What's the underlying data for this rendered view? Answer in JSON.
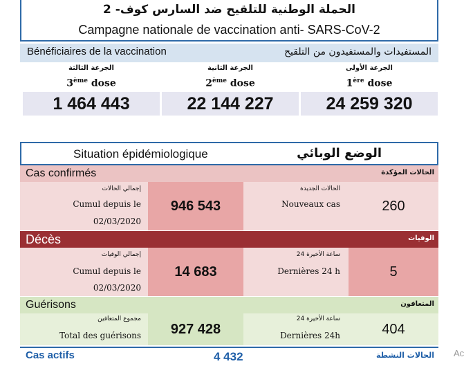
{
  "header": {
    "title_ar": "الحملة الوطنية للتلقيح ضد السارس كوف- 2",
    "title_fr": "Campagne nationale de vaccination anti- SARS-CoV-2"
  },
  "beneficiaries": {
    "label_fr": "Bénéficiaires de la vaccination",
    "label_ar": "المستفيدات والمستفيدون من التلقيح",
    "doses": [
      {
        "label_ar": "الجرعة الثالثة",
        "ordinal": "3",
        "sup": "ème",
        "word": "dose",
        "value": "1 464 443"
      },
      {
        "label_ar": "الجرعة الثانية",
        "ordinal": "2",
        "sup": "ème",
        "word": "dose",
        "value": "22 144 227"
      },
      {
        "label_ar": "الجرعة الأولى",
        "ordinal": "1",
        "sup": "ère",
        "word": "dose",
        "value": "24 259 320"
      }
    ]
  },
  "epi": {
    "title_fr": "Situation épidémiologique",
    "title_ar": "الوضع الوبائي",
    "confirmed": {
      "label_fr": "Cas confirmés",
      "label_ar": "الحالات المؤكدة",
      "cumul_ar": "إجمالي الحالات",
      "cumul_fr_1": "Cumul depuis le",
      "cumul_fr_2": "02/03/2020",
      "cumul_value": "946 543",
      "new_ar": "الحالات الجديدة",
      "new_fr": "Nouveaux cas",
      "new_value": "260"
    },
    "deaths": {
      "label_fr": "Décès",
      "label_ar": "الوفيات",
      "cumul_ar": "إجمالي الوفيات",
      "cumul_fr_1": "Cumul depuis le",
      "cumul_fr_2": "02/03/2020",
      "cumul_value": "14 683",
      "new_ar": "24 ساعة الأخيرة",
      "new_fr": "Dernières 24 h",
      "new_value": "5"
    },
    "recovered": {
      "label_fr": "Guérisons",
      "label_ar": "المتعافون",
      "cumul_ar": "مجموع المتعافين",
      "cumul_fr": "Total des guérisons",
      "cumul_value": "927 428",
      "new_ar": "24 ساعة الأخيرة",
      "new_fr": "Dernières 24h",
      "new_value": "404"
    },
    "active": {
      "label_fr": "Cas actifs",
      "label_ar": "الحالات النشطة",
      "value": "4 432"
    }
  },
  "edge_text": "Ac",
  "colors": {
    "frame_blue": "#2e6aa8",
    "band_blue": "#d6e3f0",
    "lavender": "#e6e6f1",
    "pink_header": "#ebc3c3",
    "pink_cell": "#f3dada",
    "pink_value": "#e8a6a6",
    "dark_red": "#9a2f33",
    "green_header": "#d6e6c3",
    "green_cell": "#e7f0da",
    "active_blue": "#1f5fa8"
  }
}
